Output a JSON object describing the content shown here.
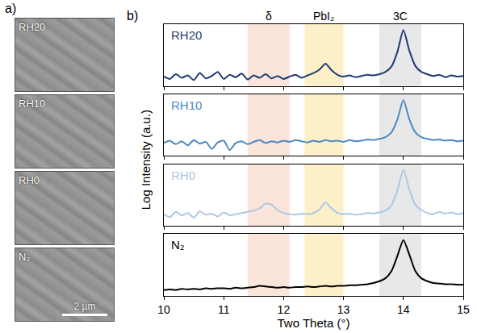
{
  "figure": {
    "panel_a": {
      "letter": "a)",
      "images": [
        "RH20",
        "RH10",
        "RH0",
        "N₂"
      ],
      "scale_bar": "2 µm"
    },
    "panel_b": {
      "letter": "b)",
      "x_label": "Two Theta (°)",
      "y_label": "Log Intensity (a.u.)",
      "bands": [
        {
          "label": "δ",
          "x0": 11.4,
          "x1": 12.1,
          "color": "#fbe4da"
        },
        {
          "label": "PbI₂",
          "x0": 12.35,
          "x1": 13.0,
          "color": "#fdf0c8"
        },
        {
          "label": "3C",
          "x0": 13.6,
          "x1": 14.3,
          "color": "#e8e8e8"
        }
      ]
    }
  },
  "chart_data": [
    {
      "type": "line",
      "title": "RH20",
      "color": "#1f3b73",
      "xlim": [
        10,
        15
      ],
      "xticks": [
        10,
        11,
        12,
        13,
        14,
        15
      ],
      "ylim": [
        0,
        1.05
      ],
      "log": "y",
      "tick_labels": false,
      "x": [
        10.0,
        10.1,
        10.2,
        10.3,
        10.4,
        10.5,
        10.6,
        10.7,
        10.8,
        10.9,
        11.0,
        11.1,
        11.2,
        11.3,
        11.4,
        11.5,
        11.6,
        11.7,
        11.8,
        11.9,
        12.0,
        12.1,
        12.2,
        12.3,
        12.4,
        12.5,
        12.6,
        12.7,
        12.8,
        12.9,
        13.0,
        13.1,
        13.2,
        13.3,
        13.4,
        13.5,
        13.6,
        13.7,
        13.8,
        13.9,
        14.0,
        14.1,
        14.2,
        14.3,
        14.4,
        14.5,
        14.6,
        14.7,
        14.8,
        14.9,
        15.0
      ],
      "values": [
        0.16,
        0.12,
        0.2,
        0.14,
        0.18,
        0.1,
        0.22,
        0.13,
        0.17,
        0.24,
        0.12,
        0.19,
        0.15,
        0.21,
        0.11,
        0.18,
        0.14,
        0.2,
        0.13,
        0.17,
        0.12,
        0.16,
        0.19,
        0.14,
        0.18,
        0.22,
        0.28,
        0.38,
        0.27,
        0.19,
        0.16,
        0.18,
        0.15,
        0.17,
        0.19,
        0.18,
        0.2,
        0.24,
        0.33,
        0.58,
        0.95,
        0.6,
        0.34,
        0.24,
        0.2,
        0.17,
        0.19,
        0.15,
        0.18,
        0.16,
        0.17
      ]
    },
    {
      "type": "line",
      "title": "RH10",
      "color": "#4a8ac4",
      "xlim": [
        10,
        15
      ],
      "xticks": [
        10,
        11,
        12,
        13,
        14,
        15
      ],
      "ylim": [
        0,
        1.05
      ],
      "log": "y",
      "tick_labels": false,
      "x": [
        10.0,
        10.1,
        10.2,
        10.3,
        10.4,
        10.5,
        10.6,
        10.7,
        10.8,
        10.9,
        11.0,
        11.1,
        11.2,
        11.3,
        11.4,
        11.5,
        11.6,
        11.7,
        11.8,
        11.9,
        12.0,
        12.1,
        12.2,
        12.3,
        12.4,
        12.5,
        12.6,
        12.7,
        12.8,
        12.9,
        13.0,
        13.1,
        13.2,
        13.3,
        13.4,
        13.5,
        13.6,
        13.7,
        13.8,
        13.9,
        14.0,
        14.1,
        14.2,
        14.3,
        14.4,
        14.5,
        14.6,
        14.7,
        14.8,
        14.9,
        15.0
      ],
      "values": [
        0.22,
        0.26,
        0.2,
        0.25,
        0.18,
        0.27,
        0.21,
        0.24,
        0.12,
        0.23,
        0.26,
        0.1,
        0.22,
        0.25,
        0.2,
        0.24,
        0.27,
        0.22,
        0.25,
        0.23,
        0.26,
        0.24,
        0.27,
        0.25,
        0.23,
        0.26,
        0.24,
        0.27,
        0.25,
        0.26,
        0.24,
        0.27,
        0.25,
        0.26,
        0.28,
        0.27,
        0.29,
        0.32,
        0.4,
        0.62,
        0.95,
        0.62,
        0.4,
        0.32,
        0.29,
        0.27,
        0.28,
        0.26,
        0.27,
        0.25,
        0.26
      ]
    },
    {
      "type": "line",
      "title": "RH0",
      "color": "#a9c8e6",
      "xlim": [
        10,
        15
      ],
      "xticks": [
        10,
        11,
        12,
        13,
        14,
        15
      ],
      "ylim": [
        0,
        1.05
      ],
      "log": "y",
      "tick_labels": false,
      "x": [
        10.0,
        10.1,
        10.2,
        10.3,
        10.4,
        10.5,
        10.6,
        10.7,
        10.8,
        10.9,
        11.0,
        11.1,
        11.2,
        11.3,
        11.4,
        11.5,
        11.6,
        11.7,
        11.8,
        11.9,
        12.0,
        12.1,
        12.2,
        12.3,
        12.4,
        12.5,
        12.6,
        12.7,
        12.8,
        12.9,
        13.0,
        13.1,
        13.2,
        13.3,
        13.4,
        13.5,
        13.6,
        13.7,
        13.8,
        13.9,
        14.0,
        14.1,
        14.2,
        14.3,
        14.4,
        14.5,
        14.6,
        14.7,
        14.8,
        14.9,
        15.0
      ],
      "values": [
        0.2,
        0.15,
        0.24,
        0.18,
        0.22,
        0.14,
        0.25,
        0.19,
        0.21,
        0.16,
        0.23,
        0.18,
        0.2,
        0.22,
        0.24,
        0.26,
        0.3,
        0.38,
        0.36,
        0.27,
        0.22,
        0.2,
        0.19,
        0.21,
        0.2,
        0.22,
        0.28,
        0.4,
        0.3,
        0.22,
        0.2,
        0.21,
        0.19,
        0.2,
        0.22,
        0.21,
        0.23,
        0.26,
        0.35,
        0.6,
        0.95,
        0.62,
        0.36,
        0.27,
        0.22,
        0.2,
        0.24,
        0.21,
        0.23,
        0.2,
        0.22
      ]
    },
    {
      "type": "line",
      "title": "N₂",
      "color": "#000000",
      "xlim": [
        10,
        15
      ],
      "xticks": [
        10,
        11,
        12,
        13,
        14,
        15
      ],
      "ylim": [
        0,
        1.05
      ],
      "log": "y",
      "tick_labels": "x",
      "x": [
        10.0,
        10.1,
        10.2,
        10.3,
        10.4,
        10.5,
        10.6,
        10.7,
        10.8,
        10.9,
        11.0,
        11.1,
        11.2,
        11.3,
        11.4,
        11.5,
        11.6,
        11.7,
        11.8,
        11.9,
        12.0,
        12.1,
        12.2,
        12.3,
        12.4,
        12.5,
        12.6,
        12.7,
        12.8,
        12.9,
        13.0,
        13.1,
        13.2,
        13.3,
        13.4,
        13.5,
        13.6,
        13.7,
        13.8,
        13.9,
        14.0,
        14.1,
        14.2,
        14.3,
        14.4,
        14.5,
        14.6,
        14.7,
        14.8,
        14.9,
        15.0
      ],
      "values": [
        0.1,
        0.11,
        0.1,
        0.12,
        0.11,
        0.12,
        0.11,
        0.13,
        0.12,
        0.13,
        0.13,
        0.12,
        0.14,
        0.13,
        0.14,
        0.15,
        0.17,
        0.16,
        0.15,
        0.14,
        0.15,
        0.14,
        0.15,
        0.15,
        0.16,
        0.15,
        0.16,
        0.17,
        0.16,
        0.17,
        0.17,
        0.18,
        0.18,
        0.19,
        0.2,
        0.22,
        0.25,
        0.3,
        0.42,
        0.68,
        0.95,
        0.7,
        0.42,
        0.3,
        0.25,
        0.22,
        0.21,
        0.2,
        0.2,
        0.19,
        0.19
      ]
    }
  ]
}
